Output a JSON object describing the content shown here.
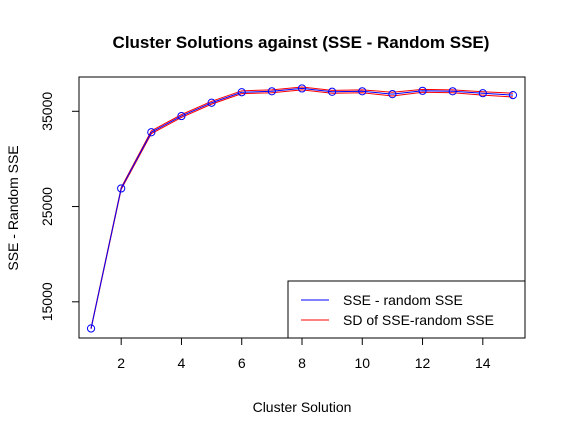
{
  "chart_data": {
    "type": "line",
    "title": "Cluster Solutions against (SSE - Random SSE)",
    "xlabel": "Cluster Solution",
    "ylabel": "SSE - Random SSE",
    "xlim": [
      0.6,
      15.4
    ],
    "ylim": [
      11200,
      38600
    ],
    "x_ticks": [
      2,
      4,
      6,
      8,
      10,
      12,
      14
    ],
    "y_ticks": [
      15000,
      25000,
      35000
    ],
    "x": [
      1,
      2,
      3,
      4,
      5,
      6,
      7,
      8,
      9,
      10,
      11,
      12,
      13,
      14,
      15
    ],
    "series": [
      {
        "name": "SSE - random SSE",
        "color": "#0000ff",
        "markers": "open-circle",
        "values": [
          12200,
          26900,
          32800,
          34500,
          35900,
          37000,
          37100,
          37400,
          37050,
          37100,
          36800,
          37150,
          37100,
          36900,
          36700
        ]
      },
      {
        "name": "SD of SSE-random SSE",
        "color": "#ff0000",
        "markers": "none",
        "band": {
          "upper": [
            12250,
            27000,
            32950,
            34650,
            36050,
            37150,
            37250,
            37550,
            37200,
            37250,
            37000,
            37300,
            37250,
            37050,
            36900
          ],
          "lower": [
            12150,
            26800,
            32650,
            34350,
            35750,
            36850,
            36950,
            37250,
            36900,
            36950,
            36600,
            37000,
            36950,
            36700,
            36500
          ]
        }
      }
    ],
    "legend": {
      "position": "bottom-right",
      "entries": [
        {
          "label": "SSE - random SSE",
          "color": "#0000ff"
        },
        {
          "label": "SD of SSE-random SSE",
          "color": "#ff0000"
        }
      ]
    },
    "grid": false
  }
}
